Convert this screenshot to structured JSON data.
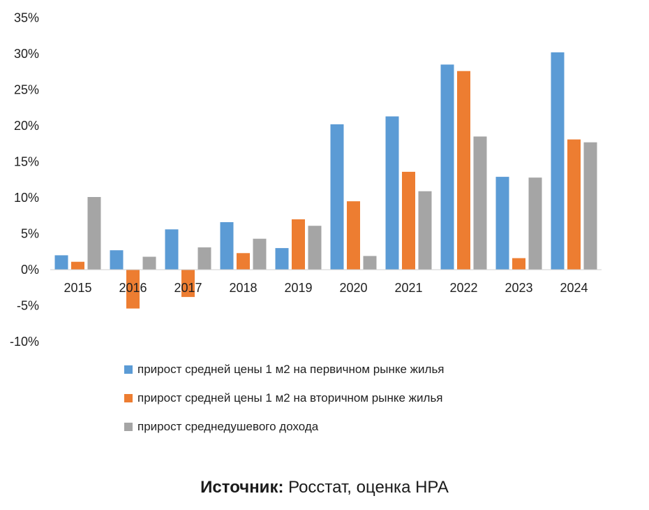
{
  "chart_data": {
    "type": "bar",
    "categories": [
      "2015",
      "2016",
      "2017",
      "2018",
      "2019",
      "2020",
      "2021",
      "2022",
      "2023",
      "2024"
    ],
    "series": [
      {
        "name": "прирост средней цены 1 м2 на первичном рынке жилья",
        "color": "#5B9BD5",
        "values": [
          2.0,
          2.7,
          5.6,
          6.6,
          3.0,
          20.2,
          21.3,
          28.5,
          12.9,
          30.2
        ]
      },
      {
        "name": "прирост средней цены 1 м2 на вторичном рынке жилья",
        "color": "#ED7D31",
        "values": [
          1.1,
          -5.4,
          -3.8,
          2.3,
          7.0,
          9.5,
          13.6,
          27.6,
          1.6,
          18.1
        ]
      },
      {
        "name": "прирост среднедушевого дохода",
        "color": "#A5A5A5",
        "values": [
          10.1,
          1.8,
          3.1,
          4.3,
          6.1,
          1.9,
          10.9,
          18.5,
          12.8,
          17.7
        ]
      }
    ],
    "yticks": [
      "35%",
      "30%",
      "25%",
      "20%",
      "15%",
      "10%",
      "5%",
      "0%",
      "-5%",
      "-10%"
    ],
    "ylim": [
      -10,
      35
    ],
    "xlabel": "",
    "ylabel": "",
    "grid": false,
    "legend_position": "bottom"
  },
  "source": {
    "label": "Источник:",
    "text": " Росстат, оценка НРА"
  }
}
